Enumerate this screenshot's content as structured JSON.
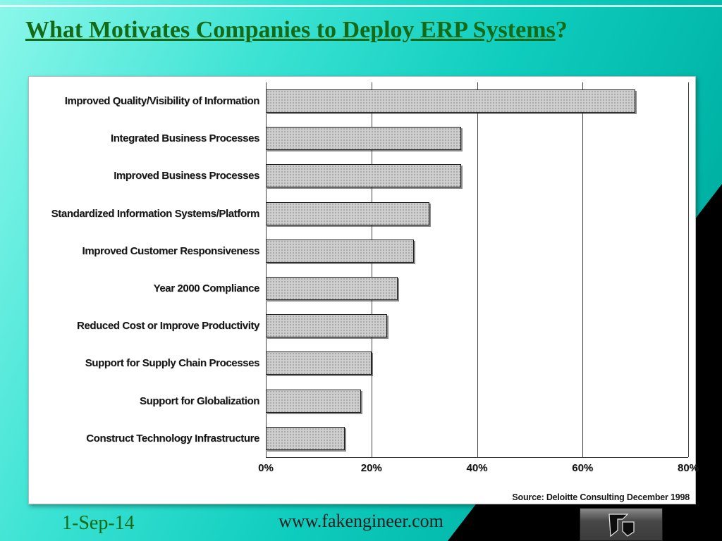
{
  "slide": {
    "title_main": "What Motivates Companies to Deploy ERP Systems",
    "title_suffix": "?",
    "footer": {
      "date": "1-Sep-14",
      "website": "www.fakengineer.com"
    },
    "colors": {
      "title_green": "#156a15",
      "background_teal": "#0fcdbe",
      "bar_fill": "#cecece",
      "shadow_black": "#000000"
    }
  },
  "chart_data": {
    "type": "bar",
    "orientation": "horizontal",
    "title": "",
    "categories": [
      "Improved Quality/Visibility of Information",
      "Integrated Business Processes",
      "Improved Business Processes",
      "Standardized Information Systems/Platform",
      "Improved Customer Responsiveness",
      "Year 2000 Compliance",
      "Reduced Cost or Improve Productivity",
      "Support for Supply Chain Processes",
      "Support for Globalization",
      "Construct Technology Infrastructure"
    ],
    "values": [
      70,
      37,
      37,
      31,
      28,
      25,
      23,
      20,
      18,
      15
    ],
    "xlabel": "",
    "ylabel": "",
    "xlim": [
      0,
      80
    ],
    "xticklabels": [
      "0%",
      "20%",
      "40%",
      "60%",
      "80%"
    ],
    "grid": "vertical",
    "legend": "none",
    "source": "Source: Deloitte Consulting December 1998"
  }
}
